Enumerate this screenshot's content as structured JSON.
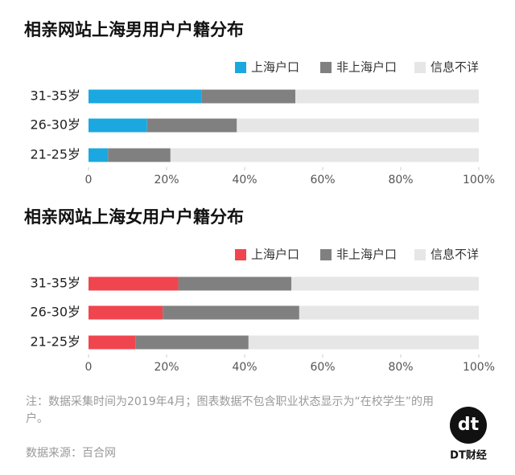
{
  "chart_data": [
    {
      "type": "bar",
      "orientation": "horizontal",
      "stacked": true,
      "title": "相亲网站上海男用户户籍分布",
      "categories": [
        "31-35岁",
        "26-30岁",
        "21-25岁"
      ],
      "series": [
        {
          "name": "上海户口",
          "color": "#1ba8e0",
          "values": [
            29,
            15,
            5
          ]
        },
        {
          "name": "非上海户口",
          "color": "#808080",
          "values": [
            24,
            23,
            16
          ]
        },
        {
          "name": "信息不详",
          "color": "#e6e6e6",
          "values": [
            47,
            62,
            79
          ]
        }
      ],
      "xlim": [
        0,
        100
      ],
      "xticks": [
        0,
        {
          "value": 20,
          "label": "20%"
        },
        {
          "value": 40,
          "label": "40%"
        },
        {
          "value": 60,
          "label": "60%"
        },
        {
          "value": 80,
          "label": "80%"
        },
        {
          "value": 100,
          "label": "100%"
        }
      ],
      "legend": "top-right"
    },
    {
      "type": "bar",
      "orientation": "horizontal",
      "stacked": true,
      "title": "相亲网站上海女用户户籍分布",
      "categories": [
        "31-35岁",
        "26-30岁",
        "21-25岁"
      ],
      "series": [
        {
          "name": "上海户口",
          "color": "#f0454f",
          "values": [
            23,
            19,
            12
          ]
        },
        {
          "name": "非上海户口",
          "color": "#808080",
          "values": [
            29,
            35,
            29
          ]
        },
        {
          "name": "信息不详",
          "color": "#e6e6e6",
          "values": [
            48,
            46,
            59
          ]
        }
      ],
      "xlim": [
        0,
        100
      ],
      "xticks": [
        0,
        {
          "value": 20,
          "label": "20%"
        },
        {
          "value": 40,
          "label": "40%"
        },
        {
          "value": 60,
          "label": "60%"
        },
        {
          "value": 80,
          "label": "80%"
        },
        {
          "value": 100,
          "label": "100%"
        }
      ],
      "legend": "top-right"
    }
  ],
  "footer": {
    "note": "注：数据采集时间为2019年4月；图表数据不包含职业状态显示为“在校学生”的用户。",
    "source": "数据来源：百合网",
    "logo_mark": "dt",
    "logo_text": "DT财经"
  }
}
